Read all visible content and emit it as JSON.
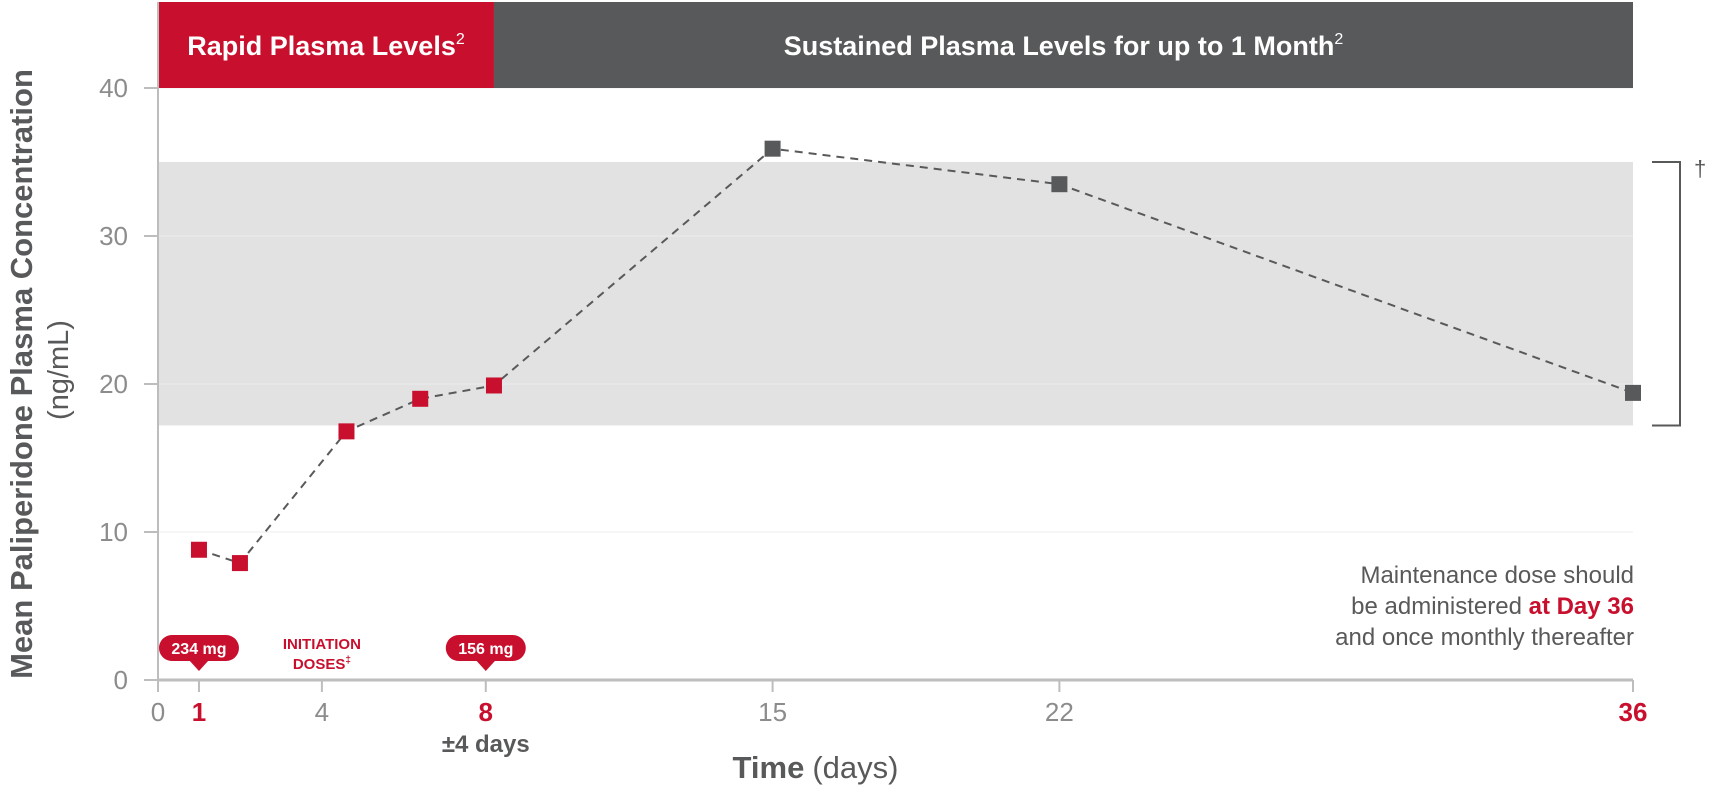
{
  "colors": {
    "red": "#c8102e",
    "gray": "#58595b",
    "band": "#e2e2e2",
    "axis": "#bdbdbd",
    "tick": "#8c8c8c"
  },
  "banners": {
    "rapid": {
      "label": "Rapid Plasma Levels",
      "sup": "2"
    },
    "sustained": {
      "label": "Sustained Plasma Levels for up to 1 Month",
      "sup": "2"
    }
  },
  "dagger": "†",
  "dose_markers": {
    "first": "234 mg",
    "second": "156 mg"
  },
  "initiation": {
    "line1": "INITIATION",
    "line2": "DOSES",
    "sup": "‡"
  },
  "note": {
    "line1": "Maintenance dose should",
    "line2_pre": "be administered ",
    "line2_bold": "at Day 36",
    "line3": "and once monthly thereafter"
  },
  "chart_data": {
    "type": "line",
    "ylabel": "Mean Paliperidone Plasma Concentration",
    "ylabel_unit": "(ng/mL)",
    "xlabel": "Time",
    "xlabel_unit": "(days)",
    "ylim": [
      0,
      40
    ],
    "xlim": [
      0,
      36
    ],
    "yticks": [
      0,
      10,
      20,
      30,
      40
    ],
    "xticks": [
      {
        "value": 0,
        "label": "0",
        "highlight": false
      },
      {
        "value": 1,
        "label": "1",
        "highlight": true
      },
      {
        "value": 4,
        "label": "4",
        "highlight": false
      },
      {
        "value": 8,
        "label": "8",
        "highlight": true,
        "sublabel": "±4 days"
      },
      {
        "value": 15,
        "label": "15",
        "highlight": false
      },
      {
        "value": 22,
        "label": "22",
        "highlight": false
      },
      {
        "value": 36,
        "label": "36",
        "highlight": true
      }
    ],
    "reference_band": [
      17.2,
      35
    ],
    "points": [
      {
        "x": 1,
        "y": 8.8,
        "phase": "rapid"
      },
      {
        "x": 2,
        "y": 7.9,
        "phase": "rapid"
      },
      {
        "x": 4.6,
        "y": 16.8,
        "phase": "rapid"
      },
      {
        "x": 6.4,
        "y": 19.0,
        "phase": "rapid"
      },
      {
        "x": 8.2,
        "y": 19.9,
        "phase": "rapid"
      },
      {
        "x": 15,
        "y": 35.9,
        "phase": "sustained"
      },
      {
        "x": 22,
        "y": 33.5,
        "phase": "sustained"
      },
      {
        "x": 36,
        "y": 19.4,
        "phase": "sustained"
      }
    ]
  }
}
